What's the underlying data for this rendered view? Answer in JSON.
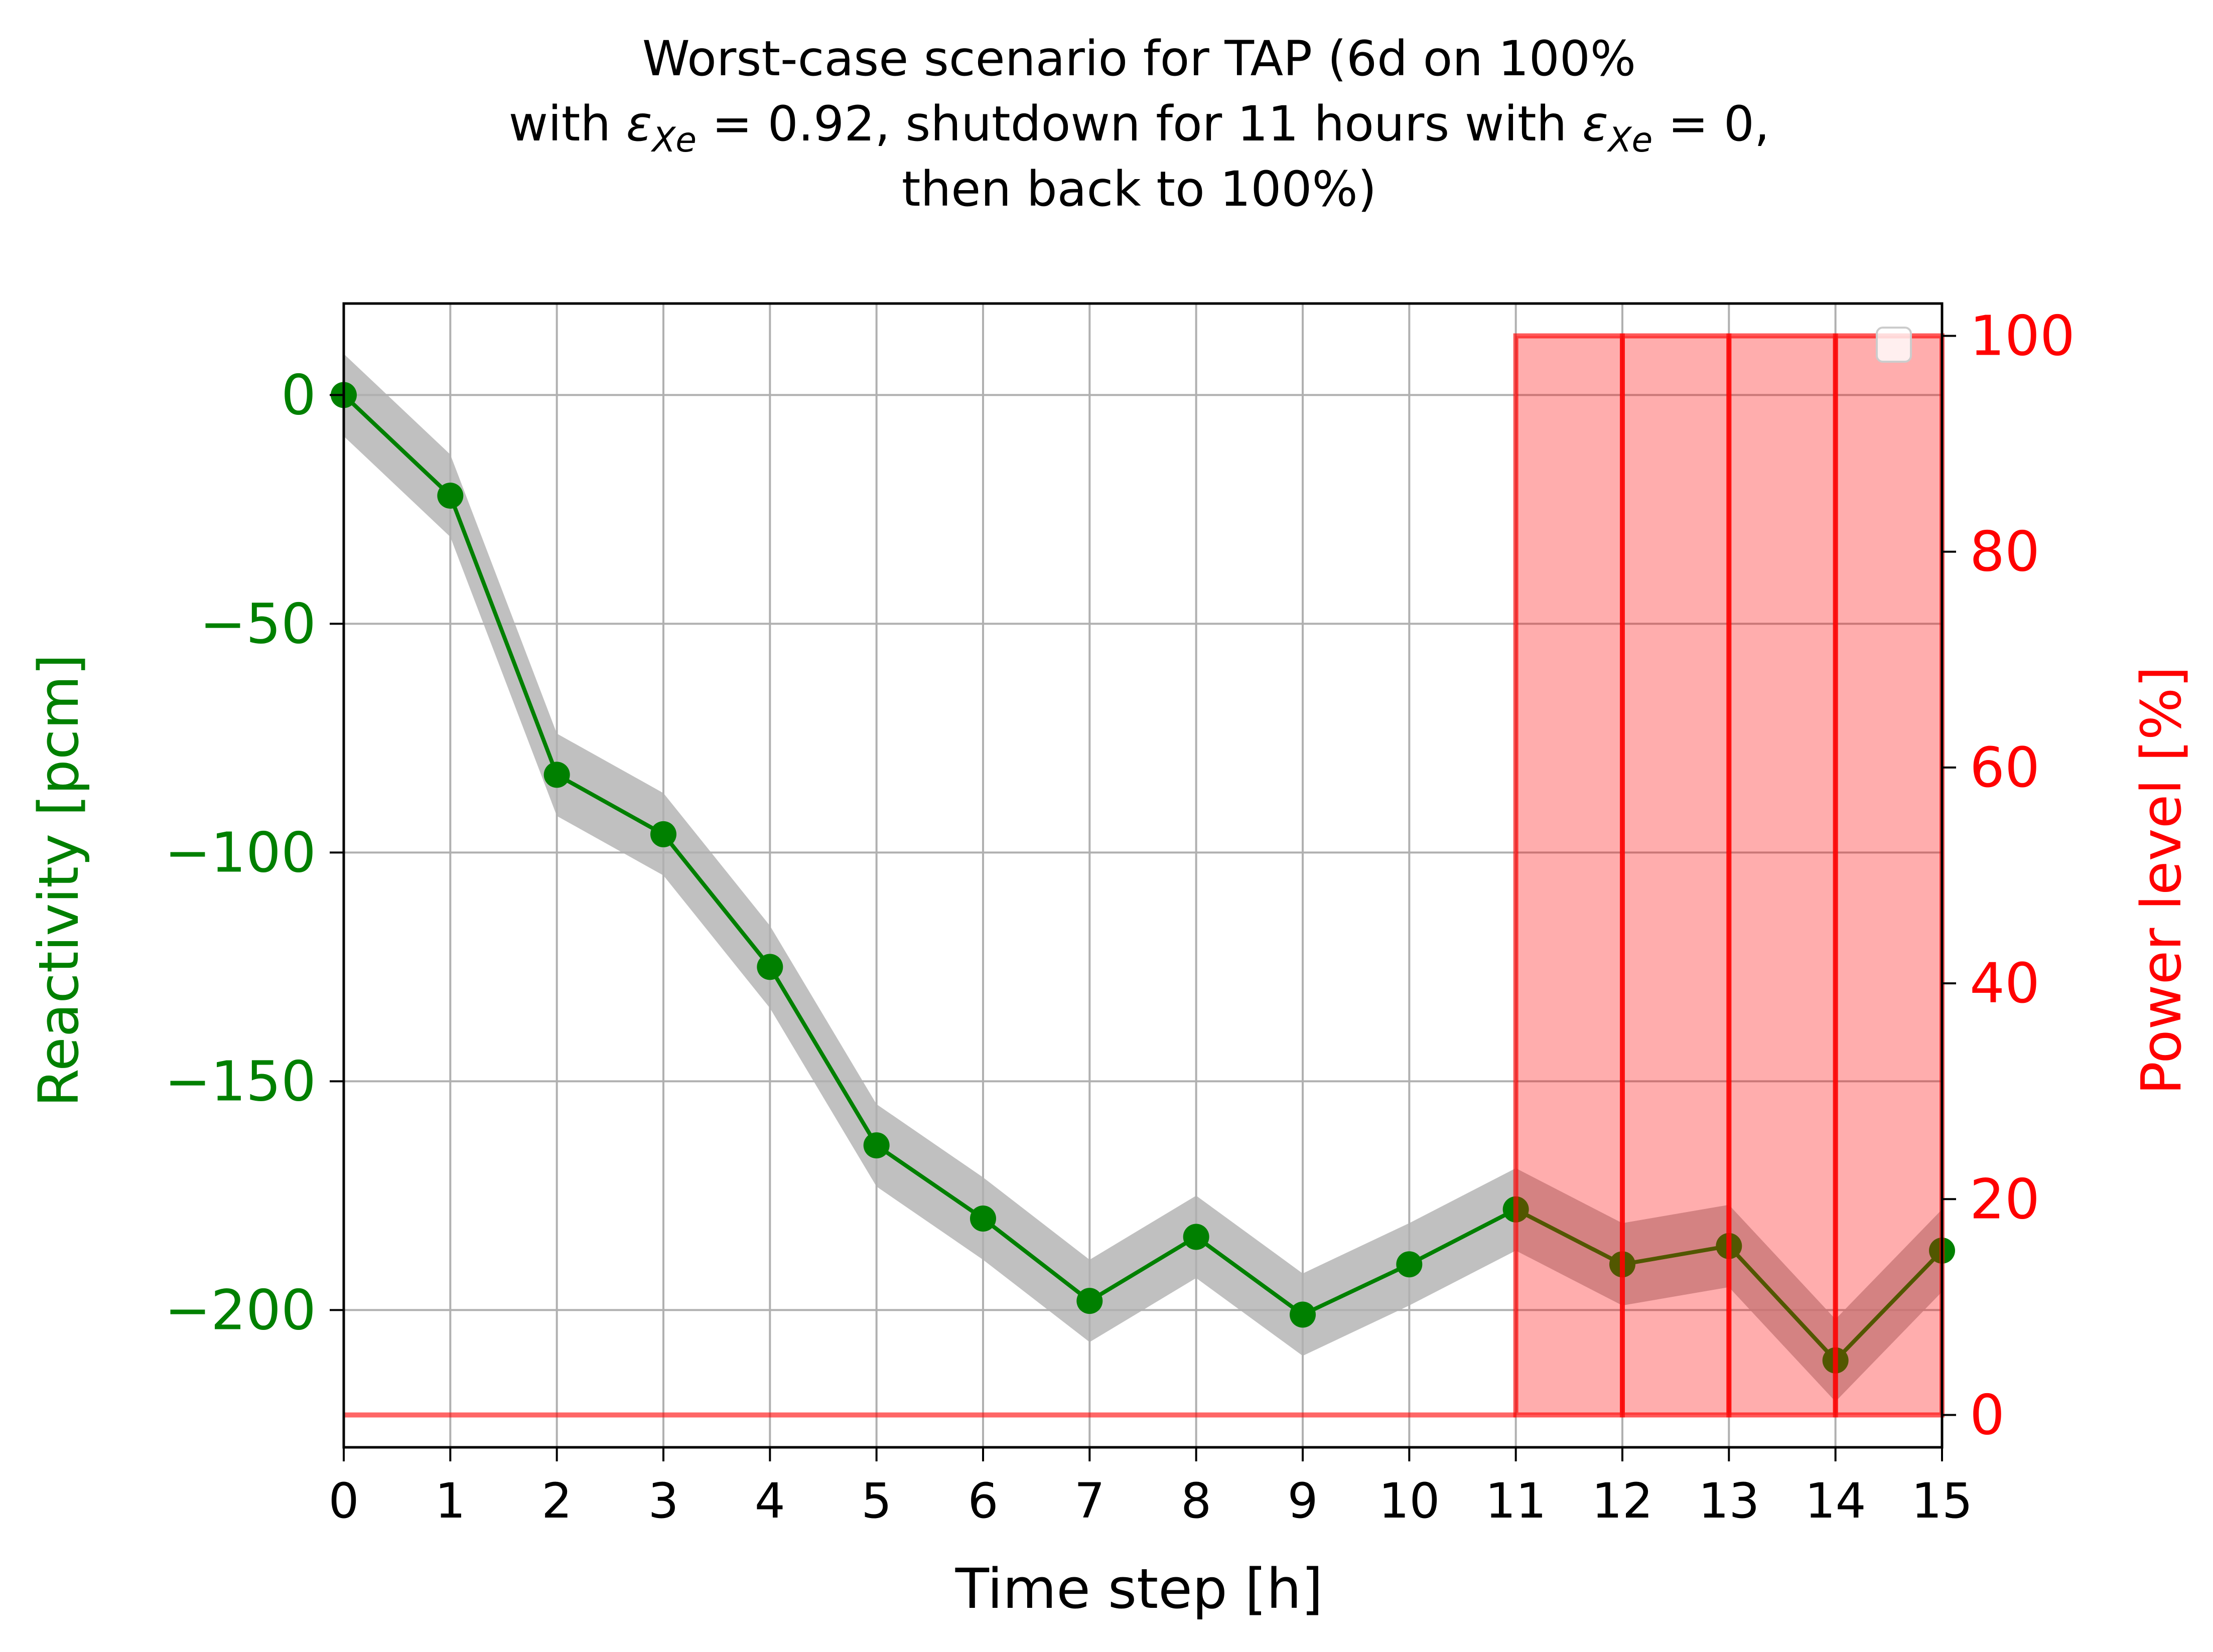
{
  "chart_data": {
    "type": "line",
    "title_lines": [
      {
        "pre": "Worst-case scenario for TAP (6d on 100%"
      },
      {
        "pre": "with ",
        "eps1": "ε",
        "sub1": "Xe",
        "mid": " = 0.92, shutdown for 11 hours with ",
        "eps2": "ε",
        "sub2": "Xe",
        "post": " = 0,"
      },
      {
        "pre": "then back to 100%)"
      }
    ],
    "xlabel": "Time step [h]",
    "ylabel_left": "Reactivity [pcm]",
    "ylabel_right": "Power level [%]",
    "xlim": [
      0,
      15
    ],
    "ylim_left": [
      -230,
      20
    ],
    "ylim_right": [
      -3,
      103
    ],
    "x_ticks": [
      "0",
      "1",
      "2",
      "3",
      "4",
      "5",
      "6",
      "7",
      "8",
      "9",
      "10",
      "11",
      "12",
      "13",
      "14",
      "15"
    ],
    "y_left_ticks": [
      {
        "value": 0,
        "label": "0"
      },
      {
        "value": -50,
        "label": "−50"
      },
      {
        "value": -100,
        "label": "−100"
      },
      {
        "value": -150,
        "label": "−150"
      },
      {
        "value": -200,
        "label": "−200"
      }
    ],
    "y_right_ticks": [
      {
        "value": 0,
        "label": "0"
      },
      {
        "value": 20,
        "label": "20"
      },
      {
        "value": 40,
        "label": "40"
      },
      {
        "value": 60,
        "label": "60"
      },
      {
        "value": 80,
        "label": "80"
      },
      {
        "value": 100,
        "label": "100"
      }
    ],
    "grid": true,
    "series": [
      {
        "axis": "left",
        "color": "#008000",
        "band_color": "#b0b0b0",
        "band_halfwidth": 9,
        "x": [
          0,
          1,
          2,
          3,
          4,
          5,
          6,
          7,
          8,
          9,
          10,
          11,
          12,
          13,
          14,
          15
        ],
        "values": [
          0,
          -22,
          -83,
          -96,
          -125,
          -164,
          -180,
          -198,
          -184,
          -201,
          -190,
          -178,
          -190,
          -186,
          -211,
          -187
        ]
      },
      {
        "axis": "right",
        "type": "step",
        "color": "#ff0000",
        "x": [
          0,
          1,
          2,
          3,
          4,
          5,
          6,
          7,
          8,
          9,
          10,
          11,
          12,
          13,
          14,
          15
        ],
        "values": [
          0,
          0,
          0,
          0,
          0,
          0,
          0,
          0,
          0,
          0,
          0,
          100,
          100,
          100,
          100,
          100
        ]
      }
    ],
    "colors": {
      "left_axis": "#008000",
      "right_axis": "#ff0000",
      "grid": "#b0b0b0"
    }
  }
}
